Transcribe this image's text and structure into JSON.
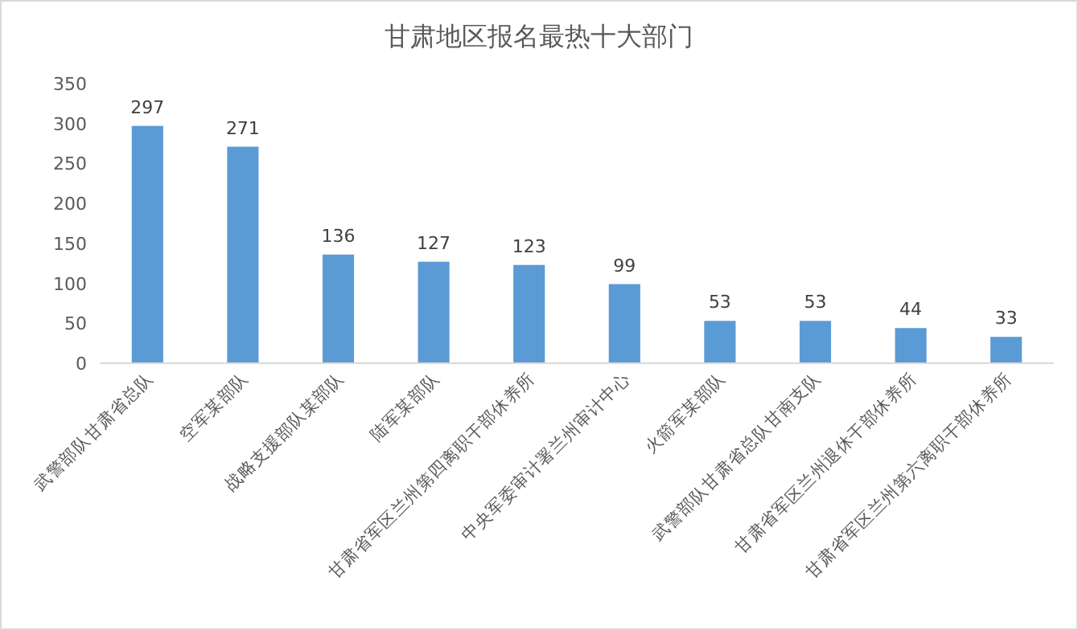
{
  "chart_data": {
    "type": "bar",
    "title": "甘肃地区报名最热十大部门",
    "categories": [
      "武警部队甘肃省总队",
      "空军某部队",
      "战略支援部队某部队",
      "陆军某部队",
      "甘肃省军区兰州第四离职干部休养所",
      "中央军委审计署兰州审计中心",
      "火箭军某部队",
      "武警部队甘肃省总队甘南支队",
      "甘肃省军区兰州退休干部休养所",
      "甘肃省军区兰州第六离职干部休养所"
    ],
    "values": [
      297,
      271,
      136,
      127,
      123,
      99,
      53,
      53,
      44,
      33
    ],
    "color": "#5b9bd5",
    "ylim": [
      0,
      350
    ],
    "yticks": [
      0,
      50,
      100,
      150,
      200,
      250,
      300,
      350
    ],
    "data_labels": true
  }
}
